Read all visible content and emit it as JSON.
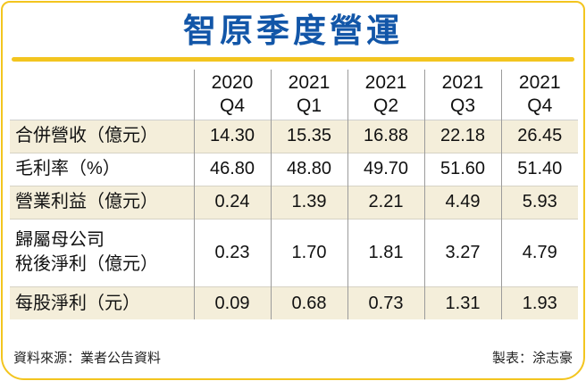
{
  "colors": {
    "title_blue": "#1256a8",
    "accent_gold": "#f3c51f",
    "row_cream": "#f4eeda"
  },
  "chart_data": {
    "type": "table",
    "title": "智原季度營運",
    "source": "資料來源：業者公告資料",
    "credit": "製表：涂志豪",
    "columns": [
      {
        "year": "2020",
        "quarter": "Q4"
      },
      {
        "year": "2021",
        "quarter": "Q1"
      },
      {
        "year": "2021",
        "quarter": "Q2"
      },
      {
        "year": "2021",
        "quarter": "Q3"
      },
      {
        "year": "2021",
        "quarter": "Q4"
      }
    ],
    "rows": [
      {
        "label": "合併營收（億元）",
        "values": [
          "14.30",
          "15.35",
          "16.88",
          "22.18",
          "26.45"
        ]
      },
      {
        "label": "毛利率（%）",
        "values": [
          "46.80",
          "48.80",
          "49.70",
          "51.60",
          "51.40"
        ]
      },
      {
        "label": "營業利益（億元）",
        "values": [
          "0.24",
          "1.39",
          "2.21",
          "4.49",
          "5.93"
        ]
      },
      {
        "label": "歸屬母公司\n稅後淨利（億元）",
        "values": [
          "0.23",
          "1.70",
          "1.81",
          "3.27",
          "4.79"
        ]
      },
      {
        "label": "每股淨利（元）",
        "values": [
          "0.09",
          "0.68",
          "0.73",
          "1.31",
          "1.93"
        ]
      }
    ]
  }
}
